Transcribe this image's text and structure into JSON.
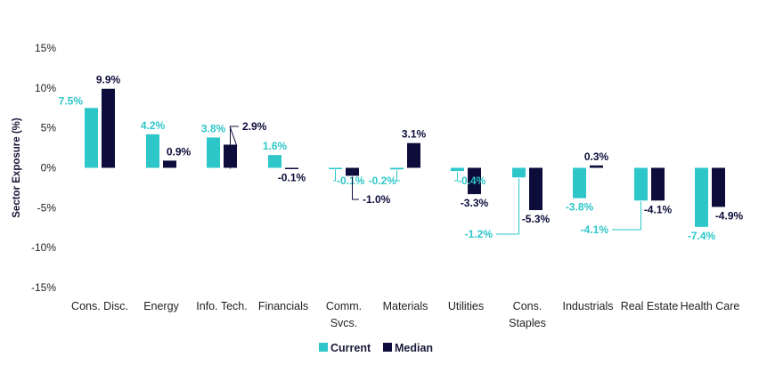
{
  "chart_data": {
    "type": "bar",
    "ylabel": "Sector Exposure (%)",
    "ylim": [
      -15,
      15
    ],
    "yticks": [
      "15%",
      "10%",
      "5%",
      "0%",
      "-5%",
      "-10%",
      "-15%"
    ],
    "ytick_values": [
      15,
      10,
      5,
      0,
      -5,
      -10,
      -15
    ],
    "categories": [
      "Cons. Disc.",
      "Energy",
      "Info. Tech.",
      "Financials",
      "Comm. Svcs.",
      "Materials",
      "Utilities",
      "Cons. Staples",
      "Industrials",
      "Real Estate",
      "Health Care"
    ],
    "category_lines": [
      [
        "Cons. Disc."
      ],
      [
        "Energy"
      ],
      [
        "Info. Tech."
      ],
      [
        "Financials"
      ],
      [
        "Comm.",
        "Svcs."
      ],
      [
        "Materials"
      ],
      [
        "Utilities"
      ],
      [
        "Cons.",
        "Staples"
      ],
      [
        "Industrials"
      ],
      [
        "Real Estate"
      ],
      [
        "Health Care"
      ]
    ],
    "series": [
      {
        "name": "Current",
        "color": "#2ec7c9",
        "values": [
          7.5,
          4.2,
          3.8,
          1.6,
          -0.1,
          -0.2,
          -0.4,
          -1.2,
          -3.8,
          -4.1,
          -7.4
        ],
        "labels": [
          "7.5%",
          "4.2%",
          "3.8%",
          "1.6%",
          "-0.1%",
          "-0.2%",
          "-0.4%",
          "-1.2%",
          "-3.8%",
          "-4.1%",
          "-7.4%"
        ]
      },
      {
        "name": "Median",
        "color": "#0d0d3b",
        "values": [
          9.9,
          0.9,
          2.9,
          -0.1,
          -1.0,
          3.1,
          -3.3,
          -5.3,
          0.3,
          -4.1,
          -4.9
        ],
        "labels": [
          "9.9%",
          "0.9%",
          "2.9%",
          "-0.1%",
          "-1.0%",
          "3.1%",
          "-3.3%",
          "-5.3%",
          "0.3%",
          "-4.1%",
          "-4.9%"
        ]
      }
    ],
    "legend_position": "bottom"
  }
}
